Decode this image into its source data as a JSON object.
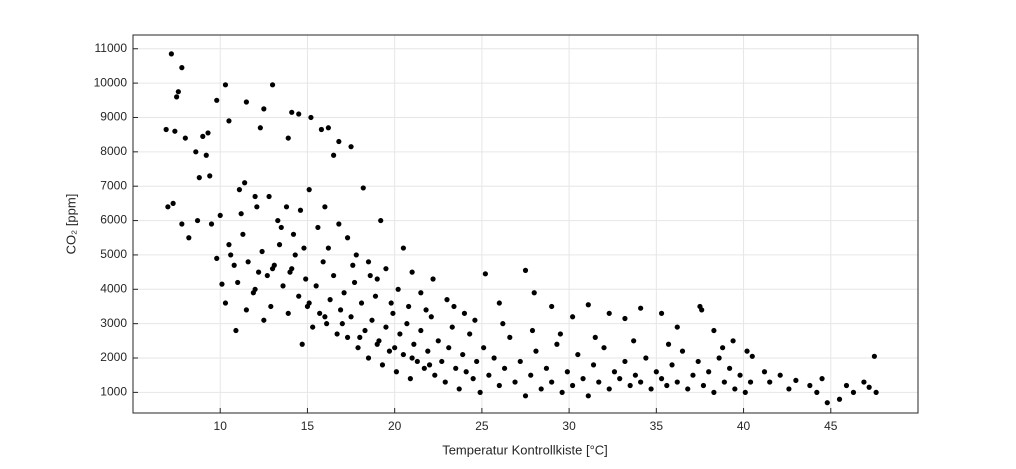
{
  "chart_data": {
    "type": "scatter",
    "xlabel": "Temperatur Kontrollkiste [°C]",
    "ylabel": "CO₂ [ppm]",
    "color": "#000000",
    "grid": true,
    "xlim": [
      5,
      50
    ],
    "ylim": [
      400,
      11400
    ],
    "xticks": [
      10,
      15,
      20,
      25,
      30,
      35,
      40,
      45
    ],
    "yticks": [
      1000,
      2000,
      3000,
      4000,
      5000,
      6000,
      7000,
      8000,
      9000,
      10000,
      11000
    ],
    "x": [
      7.2,
      7.8,
      7.5,
      7.6,
      10.3,
      13,
      9.8,
      11.5,
      12.5,
      14.1,
      14.5,
      15.2,
      15.8,
      16.2,
      16.8,
      17.5,
      6.9,
      7.4,
      8,
      9,
      9.3,
      10.5,
      12.3,
      13.9,
      16.5,
      18.2,
      19.2,
      20.5,
      8.6,
      9.2,
      8.8,
      9.4,
      7,
      7.3,
      7.8,
      8.2,
      8.7,
      9.5,
      10,
      10.1,
      10.3,
      10.9,
      11.1,
      11.4,
      12,
      12.8,
      13.3,
      13.8,
      14.2,
      14.6,
      15.1,
      15.6,
      16,
      16.8,
      17.3,
      17.8,
      18.5,
      19,
      19.5,
      20.2,
      21,
      21.5,
      22.2,
      23,
      24,
      25.2,
      26,
      27.5,
      28,
      29,
      30.2,
      31.1,
      32.3,
      33.2,
      34.1,
      35.3,
      36.2,
      37.5,
      37.6,
      38.3,
      39.4,
      40.2,
      40.5,
      41.2,
      42.1,
      43,
      43.8,
      44.5,
      44.8,
      45.5,
      45.9,
      46.3,
      46.9,
      47.5,
      47.6,
      47.2,
      44.2,
      42.6,
      41.5,
      12,
      10.5,
      10.8,
      11,
      11.3,
      11.6,
      11.9,
      12.2,
      12.4,
      12.7,
      12.9,
      13.1,
      13.4,
      13.6,
      13.9,
      14.1,
      14.3,
      14.5,
      14.7,
      14.9,
      15.1,
      15.3,
      15.5,
      15.7,
      15.9,
      16.1,
      16.3,
      16.5,
      16.7,
      16.9,
      17.1,
      17.3,
      17.5,
      17.7,
      17.9,
      18.1,
      18.3,
      18.5,
      18.7,
      18.9,
      19.1,
      19.3,
      19.5,
      19.7,
      19.9,
      20.1,
      20.3,
      20.5,
      20.7,
      20.9,
      21.1,
      21.3,
      21.5,
      21.7,
      21.9,
      22.1,
      22.3,
      22.5,
      22.7,
      22.9,
      23.1,
      23.3,
      23.5,
      23.7,
      23.9,
      24.1,
      24.3,
      24.5,
      24.7,
      24.9,
      25.1,
      25.4,
      25.7,
      26,
      26.3,
      26.6,
      26.9,
      27.2,
      27.5,
      27.8,
      28.1,
      28.4,
      28.7,
      29,
      29.3,
      29.6,
      29.9,
      30.2,
      30.5,
      30.8,
      31.1,
      31.4,
      31.7,
      32,
      32.3,
      32.6,
      32.9,
      33.2,
      33.5,
      33.8,
      34.1,
      34.4,
      34.7,
      35,
      35.3,
      35.6,
      35.9,
      36.2,
      36.5,
      36.8,
      37.1,
      37.4,
      37.7,
      38,
      38.3,
      38.6,
      38.9,
      39.2,
      39.5,
      39.8,
      40.1,
      40.4,
      13,
      14,
      15,
      16,
      17,
      18,
      19,
      20,
      21,
      22,
      11.5,
      12.5,
      13.5,
      10.6,
      9.8,
      11.2,
      12.1,
      14.8,
      16.2,
      17.6,
      18.6,
      19.8,
      20.8,
      21.8,
      23.4,
      24.6,
      26.2,
      27.9,
      29.5,
      31.5,
      33.7,
      35.7,
      38.8
    ],
    "values": [
      10850,
      10450,
      9600,
      9750,
      9950,
      9950,
      9500,
      9450,
      9250,
      9150,
      9100,
      9000,
      8650,
      8700,
      8300,
      8150,
      8650,
      8600,
      8400,
      8450,
      8550,
      8900,
      8700,
      8400,
      7900,
      6950,
      6000,
      5200,
      8000,
      7900,
      7250,
      7300,
      6400,
      6500,
      5900,
      5500,
      6000,
      5900,
      6150,
      4150,
      3600,
      2800,
      6900,
      7100,
      6700,
      6700,
      6000,
      6400,
      5600,
      6300,
      6900,
      5800,
      6400,
      5900,
      5500,
      5000,
      4800,
      4300,
      4600,
      4000,
      4500,
      3900,
      4300,
      3700,
      3300,
      4450,
      3600,
      4550,
      3900,
      3500,
      3200,
      3550,
      3300,
      3150,
      3450,
      3300,
      2900,
      3500,
      3400,
      2800,
      2500,
      2200,
      2050,
      1600,
      1500,
      1350,
      1200,
      1400,
      700,
      800,
      1200,
      1000,
      1300,
      2050,
      1000,
      1150,
      1000,
      1100,
      1300,
      4000,
      5300,
      4700,
      4200,
      5600,
      4800,
      3900,
      4500,
      5100,
      4400,
      3500,
      4700,
      5300,
      4100,
      3300,
      4600,
      5000,
      3800,
      2400,
      4300,
      3600,
      2900,
      4100,
      3300,
      4800,
      3000,
      3700,
      4400,
      2700,
      3400,
      3900,
      2600,
      3200,
      4200,
      2300,
      3600,
      2800,
      2000,
      3100,
      3800,
      2500,
      1800,
      2900,
      2200,
      3300,
      1600,
      2700,
      2100,
      3000,
      1400,
      2400,
      1900,
      2800,
      1700,
      2200,
      3200,
      1500,
      2500,
      1900,
      1300,
      2300,
      2900,
      1700,
      1100,
      2100,
      1600,
      2700,
      1400,
      1900,
      1000,
      2300,
      1500,
      2000,
      1200,
      1700,
      2600,
      1300,
      1900,
      900,
      1500,
      2200,
      1100,
      1700,
      1300,
      2400,
      1000,
      1600,
      1200,
      2100,
      1400,
      900,
      1800,
      1300,
      2300,
      1100,
      1600,
      1400,
      1900,
      1200,
      1500,
      1300,
      2000,
      1100,
      1600,
      1400,
      1200,
      1800,
      1300,
      2200,
      1100,
      1500,
      1900,
      1200,
      1600,
      1000,
      2000,
      1300,
      1700,
      1100,
      1500,
      1000,
      1300,
      4600,
      4500,
      3500,
      3200,
      3000,
      2600,
      2400,
      2300,
      2000,
      1800,
      3400,
      3100,
      5800,
      5000,
      4900,
      6200,
      6400,
      5200,
      5200,
      4700,
      4400,
      3600,
      3500,
      3400,
      3500,
      3100,
      3000,
      2800,
      2700,
      2600,
      2500,
      2400,
      2300
    ]
  }
}
